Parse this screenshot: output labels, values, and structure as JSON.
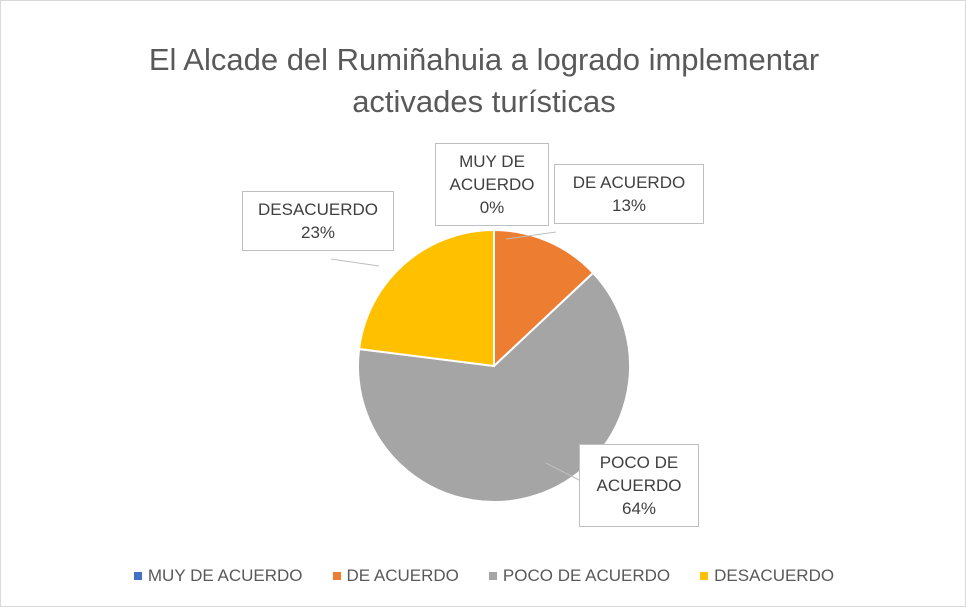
{
  "chart_data": {
    "type": "pie",
    "title": "El Alcade del Rumiñahuia a logrado implementar activades turísticas",
    "categories": [
      "MUY DE ACUERDO",
      "DE ACUERDO",
      "POCO DE ACUERDO",
      "DESACUERDO"
    ],
    "values": [
      0,
      13,
      64,
      23
    ],
    "value_labels": [
      "0%",
      "13%",
      "64%",
      "23%"
    ],
    "colors": [
      "#4472c4",
      "#ed7d31",
      "#a5a5a5",
      "#ffc000"
    ],
    "legend": "bottom"
  }
}
